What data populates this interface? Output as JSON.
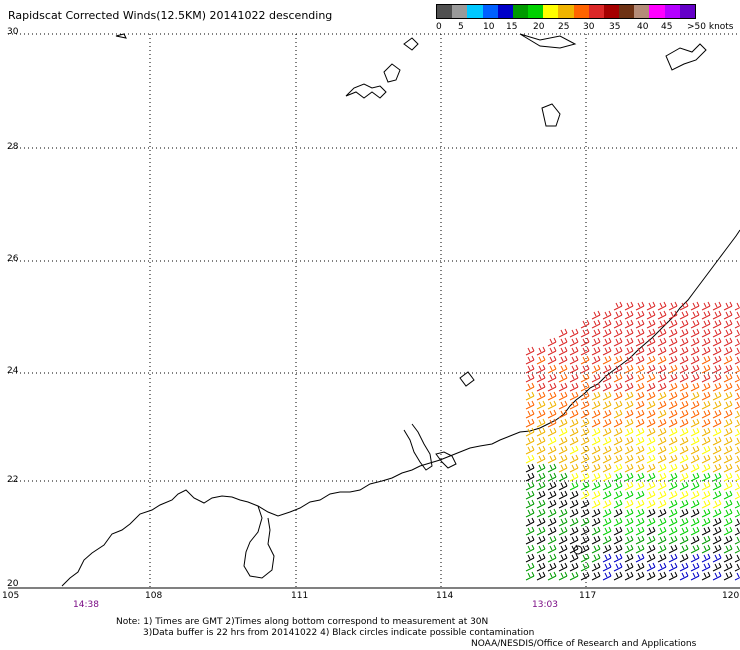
{
  "title": "Rapidscat Corrected Winds(12.5KM) 20141022 descending",
  "scale": {
    "colors": [
      "#505050",
      "#9a9a9a",
      "#00c8ff",
      "#0060ff",
      "#0000c8",
      "#009b00",
      "#00d200",
      "#ffff00",
      "#f0b400",
      "#ff6400",
      "#dc2828",
      "#a50000",
      "#6e3214",
      "#b48c78",
      "#ff00ff",
      "#b400ff",
      "#6400c8"
    ],
    "labels": [
      "0",
      "5",
      "10",
      "15",
      "20",
      "25",
      "30",
      "35",
      "40",
      "45",
      ">50 knots"
    ]
  },
  "lat_labels": [
    "30",
    "28",
    "26",
    "24",
    "22",
    "20"
  ],
  "lon_labels": [
    "105",
    "108",
    "111",
    "114",
    "117",
    "120"
  ],
  "times": [
    "14:38",
    "13:03"
  ],
  "notes": [
    "Note: 1) Times are GMT 2)Times along bottom correspond to measurement at 30N",
    "3)Data buffer is 22 hrs from 20141022 4) Black circles indicate possible contamination"
  ],
  "credit": "NOAA/NESDIS/Office of Research and Applications"
}
